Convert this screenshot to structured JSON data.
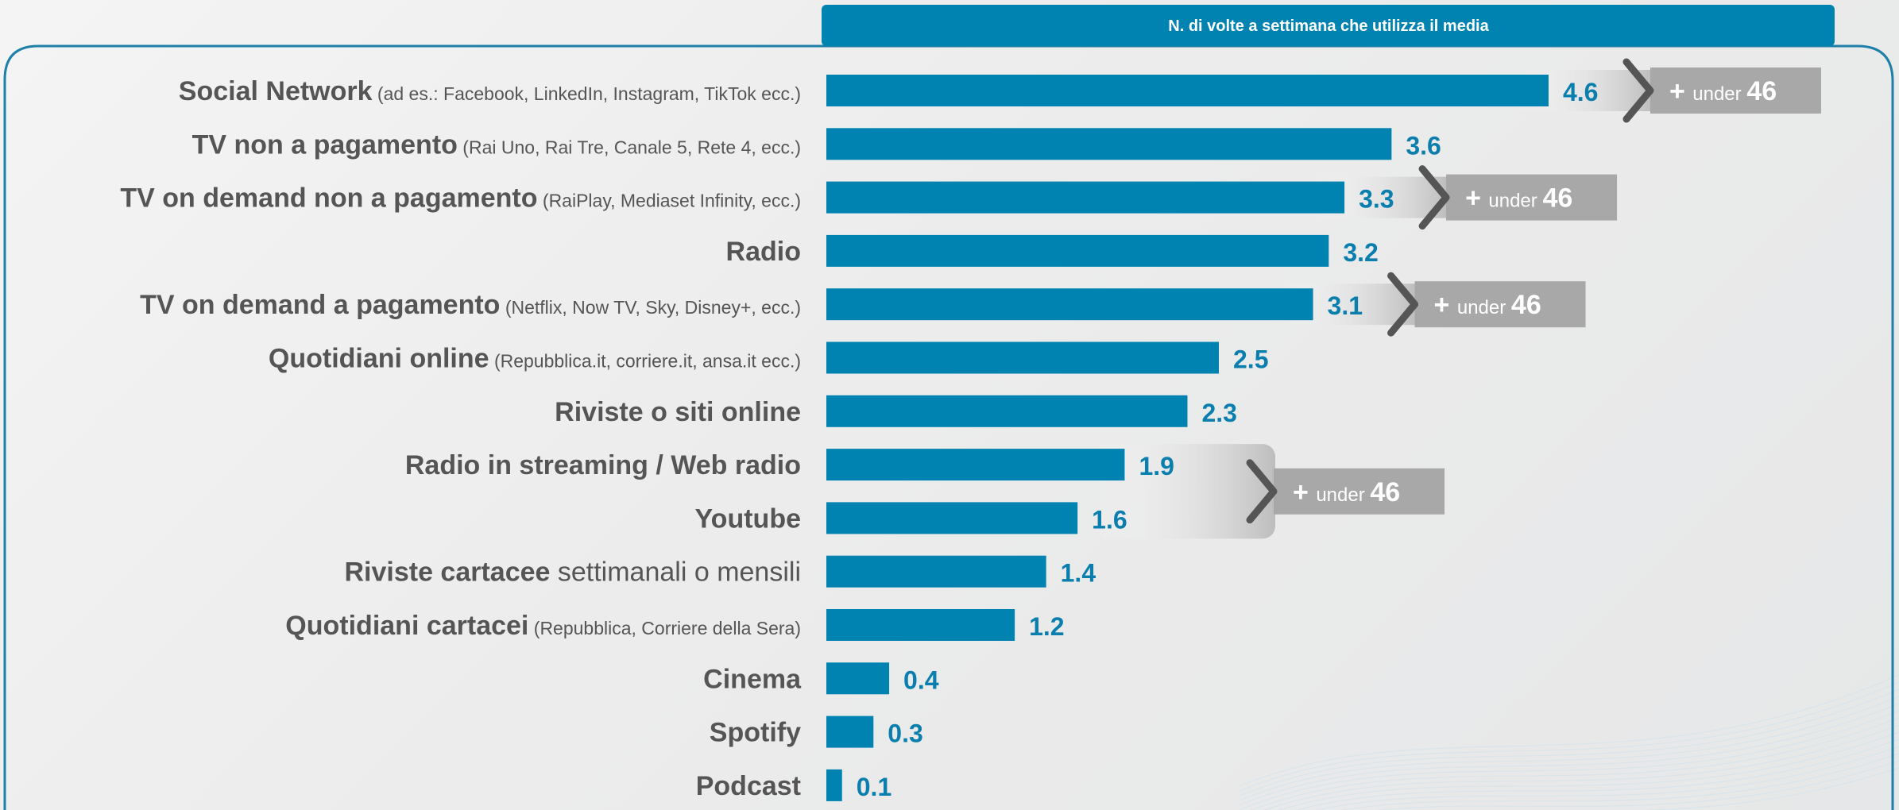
{
  "colors": {
    "bar": "#0083B0",
    "value_text": "#0A7FAE",
    "category_text": "#555555",
    "header_bg": "#0083B0",
    "frame": "#1E7FA8",
    "badge_bg": "#A8A8A8",
    "chevron": "#555555"
  },
  "header": {
    "title": "N. di volte a settimana che utilizza il media"
  },
  "badge": {
    "plus": "+",
    "word": "under",
    "number": "46"
  },
  "chart_data": {
    "type": "bar",
    "orientation": "horizontal",
    "title": "N. di volte a settimana che utilizza il media",
    "xlim": [
      0,
      4.6
    ],
    "grid": false,
    "categories": [
      {
        "name": "Social Network",
        "detail": "(ad es.: Facebook, LinkedIn, Instagram, TikTok ecc.)",
        "detail_size": "small"
      },
      {
        "name": "TV non a pagamento",
        "detail": "(Rai Uno, Rai Tre, Canale 5, Rete 4, ecc.)",
        "detail_size": "small"
      },
      {
        "name": "TV on demand non a pagamento",
        "detail": "(RaiPlay, Mediaset Infinity, ecc.)",
        "detail_size": "small"
      },
      {
        "name": "Radio",
        "detail": "",
        "detail_size": "small"
      },
      {
        "name": "TV on demand a pagamento",
        "detail": "(Netflix, Now TV, Sky, Disney+, ecc.)",
        "detail_size": "small"
      },
      {
        "name": "Quotidiani online",
        "detail": "(Repubblica.it, corriere.it, ansa.it ecc.)",
        "detail_size": "small"
      },
      {
        "name": "Riviste o siti online",
        "detail": "",
        "detail_size": "small"
      },
      {
        "name": "Radio in streaming / Web radio",
        "detail": "",
        "detail_size": "small"
      },
      {
        "name": "Youtube",
        "detail": "",
        "detail_size": "small"
      },
      {
        "name": "Riviste cartacee",
        "detail": "settimanali o mensili",
        "detail_size": "large"
      },
      {
        "name": "Quotidiani cartacei",
        "detail": "(Repubblica, Corriere della Sera)",
        "detail_size": "small"
      },
      {
        "name": "Cinema",
        "detail": "",
        "detail_size": "small"
      },
      {
        "name": "Spotify",
        "detail": "",
        "detail_size": "small"
      },
      {
        "name": "Podcast",
        "detail": "",
        "detail_size": "small"
      }
    ],
    "values": [
      4.6,
      3.6,
      3.3,
      3.2,
      3.1,
      2.5,
      2.3,
      1.9,
      1.6,
      1.4,
      1.2,
      0.4,
      0.3,
      0.1
    ],
    "value_labels": [
      "4.6",
      "3.6",
      "3.3",
      "3.2",
      "3.1",
      "2.5",
      "2.3",
      "1.9",
      "1.6",
      "1.4",
      "1.2",
      "0.4",
      "0.3",
      "0.1"
    ],
    "annotations": [
      {
        "rows": [
          0
        ],
        "text": "+ under 46"
      },
      {
        "rows": [
          2
        ],
        "text": "+ under 46"
      },
      {
        "rows": [
          4
        ],
        "text": "+ under 46"
      },
      {
        "rows": [
          7,
          8
        ],
        "text": "+ under 46"
      }
    ]
  }
}
